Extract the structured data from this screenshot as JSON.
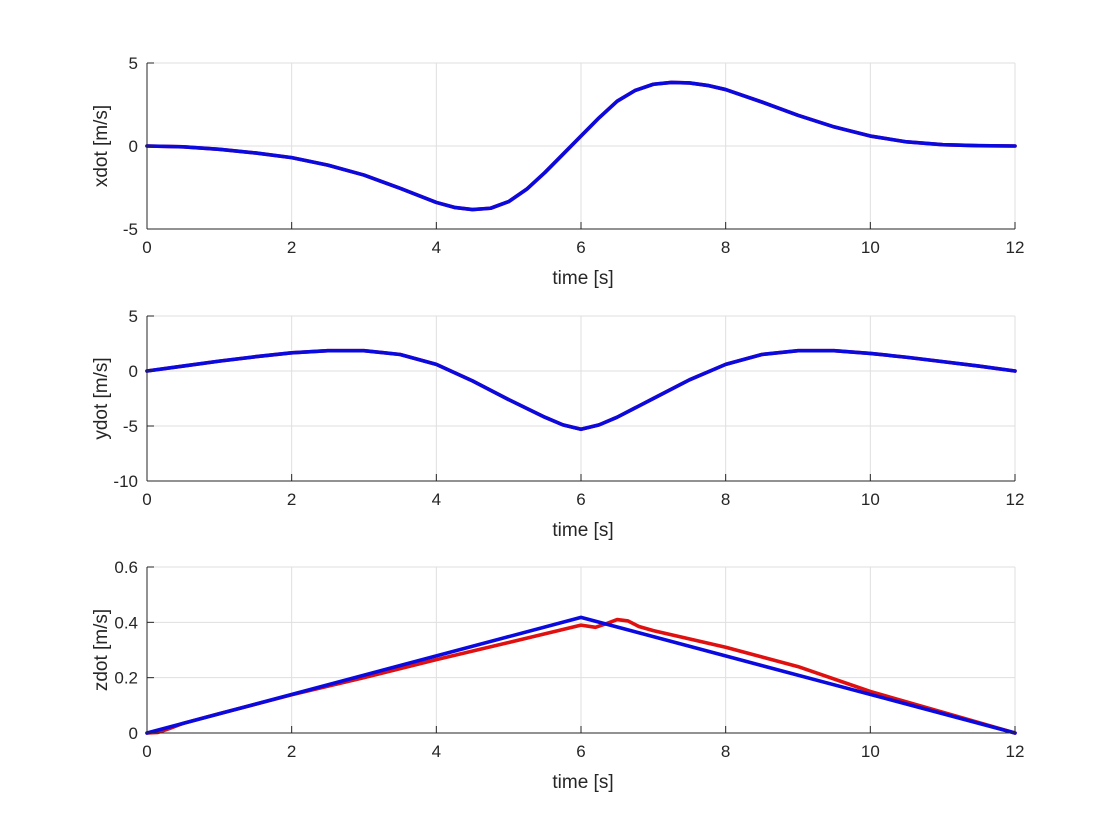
{
  "chart_data": [
    {
      "type": "line",
      "xlabel": "time [s]",
      "ylabel": "xdot [m/s]",
      "xlim": [
        0,
        12
      ],
      "ylim": [
        -5,
        5
      ],
      "xticks": [
        "0",
        "2",
        "4",
        "6",
        "8",
        "10",
        "12"
      ],
      "yticks": [
        "-5",
        "0",
        "5"
      ],
      "grid": true,
      "series": [
        {
          "color": "#e01010",
          "x": [
            0,
            0.5,
            1,
            1.5,
            2,
            2.5,
            3,
            3.5,
            4,
            4.25,
            4.5,
            4.75,
            5,
            5.25,
            5.5,
            5.75,
            6,
            6.25,
            6.5,
            6.75,
            7,
            7.25,
            7.5,
            7.75,
            8,
            8.5,
            9,
            9.5,
            10,
            10.5,
            11,
            11.5,
            12
          ],
          "y": [
            0,
            -0.05,
            -0.2,
            -0.42,
            -0.7,
            -1.15,
            -1.75,
            -2.55,
            -3.4,
            -3.7,
            -3.83,
            -3.75,
            -3.35,
            -2.6,
            -1.6,
            -0.5,
            0.6,
            1.7,
            2.7,
            3.35,
            3.72,
            3.83,
            3.8,
            3.65,
            3.4,
            2.65,
            1.85,
            1.15,
            0.6,
            0.25,
            0.08,
            0.02,
            0
          ]
        },
        {
          "color": "#0a0ae0",
          "x": [
            0,
            0.5,
            1,
            1.5,
            2,
            2.5,
            3,
            3.5,
            4,
            4.25,
            4.5,
            4.75,
            5,
            5.25,
            5.5,
            5.75,
            6,
            6.25,
            6.5,
            6.75,
            7,
            7.25,
            7.5,
            7.75,
            8,
            8.5,
            9,
            9.5,
            10,
            10.5,
            11,
            11.5,
            12
          ],
          "y": [
            0,
            -0.05,
            -0.2,
            -0.42,
            -0.7,
            -1.15,
            -1.75,
            -2.55,
            -3.4,
            -3.7,
            -3.83,
            -3.75,
            -3.35,
            -2.6,
            -1.6,
            -0.5,
            0.6,
            1.7,
            2.7,
            3.35,
            3.72,
            3.83,
            3.8,
            3.65,
            3.4,
            2.65,
            1.85,
            1.15,
            0.6,
            0.25,
            0.08,
            0.02,
            0
          ]
        }
      ]
    },
    {
      "type": "line",
      "xlabel": "time [s]",
      "ylabel": "ydot [m/s]",
      "xlim": [
        0,
        12
      ],
      "ylim": [
        -10,
        5
      ],
      "xticks": [
        "0",
        "2",
        "4",
        "6",
        "8",
        "10",
        "12"
      ],
      "yticks": [
        "-10",
        "-5",
        "0",
        "5"
      ],
      "grid": true,
      "series": [
        {
          "color": "#e01010",
          "x": [
            0,
            0.5,
            1,
            1.5,
            2,
            2.5,
            3,
            3.5,
            4,
            4.5,
            5,
            5.5,
            5.75,
            6,
            6.25,
            6.5,
            7,
            7.5,
            8,
            8.5,
            9,
            9.5,
            10,
            10.5,
            11,
            11.5,
            12
          ],
          "y": [
            0,
            0.45,
            0.9,
            1.3,
            1.65,
            1.85,
            1.85,
            1.5,
            0.6,
            -0.9,
            -2.6,
            -4.2,
            -4.9,
            -5.3,
            -4.9,
            -4.2,
            -2.5,
            -0.8,
            0.6,
            1.5,
            1.85,
            1.85,
            1.6,
            1.25,
            0.85,
            0.45,
            0
          ]
        },
        {
          "color": "#0a0ae0",
          "x": [
            0,
            0.5,
            1,
            1.5,
            2,
            2.5,
            3,
            3.5,
            4,
            4.5,
            5,
            5.5,
            5.75,
            6,
            6.25,
            6.5,
            7,
            7.5,
            8,
            8.5,
            9,
            9.5,
            10,
            10.5,
            11,
            11.5,
            12
          ],
          "y": [
            0,
            0.45,
            0.9,
            1.3,
            1.65,
            1.85,
            1.85,
            1.5,
            0.6,
            -0.9,
            -2.6,
            -4.2,
            -4.9,
            -5.3,
            -4.9,
            -4.2,
            -2.5,
            -0.8,
            0.6,
            1.5,
            1.85,
            1.85,
            1.6,
            1.25,
            0.85,
            0.45,
            0
          ]
        }
      ]
    },
    {
      "type": "line",
      "xlabel": "time [s]",
      "ylabel": "zdot [m/s]",
      "xlim": [
        0,
        12
      ],
      "ylim": [
        0,
        0.6
      ],
      "xticks": [
        "0",
        "2",
        "4",
        "6",
        "8",
        "10",
        "12"
      ],
      "yticks": [
        "0",
        "0.2",
        "0.4",
        "0.6"
      ],
      "grid": true,
      "series": [
        {
          "color": "#e01010",
          "x": [
            0,
            0.15,
            0.3,
            0.5,
            1,
            2,
            3,
            4,
            5,
            6,
            6.2,
            6.35,
            6.5,
            6.65,
            6.8,
            7,
            8,
            9,
            10,
            11,
            12
          ],
          "y": [
            0,
            0.002,
            0.015,
            0.035,
            0.07,
            0.138,
            0.2,
            0.265,
            0.327,
            0.39,
            0.382,
            0.395,
            0.41,
            0.405,
            0.385,
            0.37,
            0.31,
            0.24,
            0.15,
            0.075,
            0
          ]
        },
        {
          "color": "#0a0ae0",
          "x": [
            0,
            6,
            12
          ],
          "y": [
            0,
            0.418,
            0
          ]
        }
      ]
    }
  ]
}
